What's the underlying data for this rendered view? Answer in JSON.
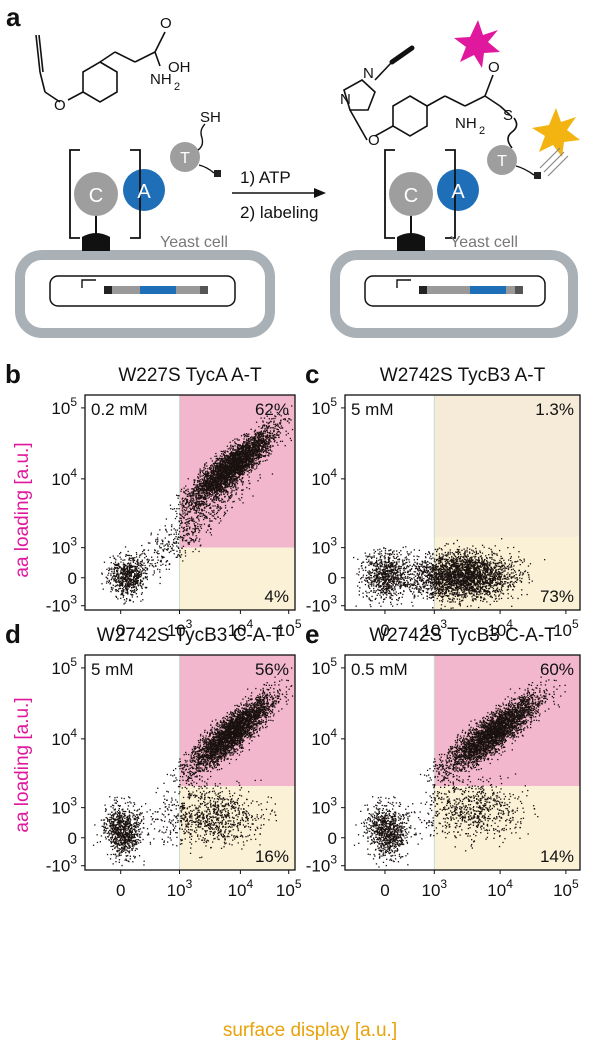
{
  "panel_a": {
    "label": "a",
    "steps": [
      "1) ATP",
      "2) labeling"
    ],
    "cell_label": "Yeast cell",
    "domains": [
      "C",
      "A",
      "T"
    ],
    "chem": {
      "oh": "OH",
      "nh": "NH",
      "sub2": "2",
      "sh": "SH",
      "o": "O",
      "s": "S",
      "n": "N"
    }
  },
  "axes": {
    "y_label": "aa loading [a.u.]",
    "x_label": "surface display [a.u.]",
    "y_ticks": [
      {
        "text": "10",
        "sup": "5"
      },
      {
        "text": "10",
        "sup": "4"
      },
      {
        "text": "10",
        "sup": "3"
      },
      {
        "text": "0"
      },
      {
        "text": "-10",
        "sup": "3"
      }
    ],
    "x_ticks": [
      {
        "text": "0"
      },
      {
        "text": "10",
        "sup": "3"
      },
      {
        "text": "10",
        "sup": "4"
      },
      {
        "text": "10",
        "sup": "5"
      }
    ]
  },
  "panels": [
    {
      "label": "b",
      "title": "W227S TycA A-T",
      "conc": "0.2 mM",
      "upper_pct": "62%",
      "lower_pct": "4%"
    },
    {
      "label": "c",
      "title": "W2742S TycB3 A-T",
      "conc": "5 mM",
      "upper_pct": "1.3%",
      "lower_pct": "73%"
    },
    {
      "label": "d",
      "title": "W2742S TycB3 C-A-T",
      "conc": "5 mM",
      "upper_pct": "56%",
      "lower_pct": "16%"
    },
    {
      "label": "e",
      "title": "W2742S TycB3 C-A-T",
      "conc": "0.5 mM",
      "upper_pct": "60%",
      "lower_pct": "14%"
    }
  ]
}
